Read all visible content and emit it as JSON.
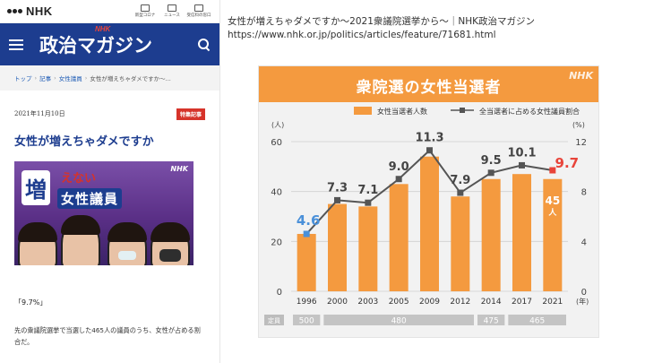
{
  "phone": {
    "logo": "NHK",
    "top_icons": [
      {
        "label": "新型コロナ",
        "icon": "virus-icon"
      },
      {
        "label": "ニュース",
        "icon": "news-icon"
      },
      {
        "label": "受信料の窓口",
        "icon": "receipt-icon"
      }
    ],
    "magazine_title": "政治マガジン",
    "magazine_brand": "NHK",
    "breadcrumb": {
      "home": "トップ",
      "articles": "記事",
      "category": "女性議員",
      "current": "女性が増えちゃダメですか〜..."
    },
    "date": "2021年11月10日",
    "tag": "特集記事",
    "headline": "女性が増えちゃダメですか",
    "hero": {
      "line1": "増",
      "line2": "えない",
      "line3": "女性議員",
      "brand": "NHK"
    },
    "subhead": "「9.7%」",
    "body": "先の衆議院選挙で当選した465人の議員のうち、女性が占める割合だ。"
  },
  "caption": {
    "title": "女性が増えちゃダメですか〜2021衆議院選挙から〜｜NHK政治マガジン",
    "url": "https://www.nhk.or.jp/politics/articles/feature/71681.html"
  },
  "chart_data": {
    "type": "bar",
    "title": "衆院選の女性当選者",
    "brand": "NHK",
    "legend": {
      "bars": "女性当選者人数",
      "line": "全当選者に占める女性議員割合"
    },
    "categories": [
      "1996",
      "2000",
      "2003",
      "2005",
      "2009",
      "2012",
      "2014",
      "2017",
      "2021"
    ],
    "series": [
      {
        "name": "女性当選者人数",
        "axis": "left",
        "values": [
          23,
          35,
          34,
          43,
          54,
          38,
          45,
          47,
          45
        ]
      },
      {
        "name": "全当選者に占める女性議員割合",
        "axis": "right",
        "values": [
          4.6,
          7.3,
          7.1,
          9.0,
          11.3,
          7.9,
          9.5,
          10.1,
          9.7
        ]
      }
    ],
    "pct_labels": [
      "4.6",
      "7.3",
      "7.1",
      "9.0",
      "11.3",
      "7.9",
      "9.5",
      "10.1",
      "9.7"
    ],
    "highlight_bar_label": "45",
    "highlight_bar_unit": "人",
    "ylim_left": [
      0,
      60
    ],
    "ylim_right": [
      0,
      12
    ],
    "left_ticks": [
      "0",
      "20",
      "40",
      "60"
    ],
    "right_ticks": [
      "0",
      "4",
      "8",
      "12"
    ],
    "left_unit": "(人)",
    "right_unit": "(%)",
    "x_unit": "(年)",
    "seats_label": "定員",
    "seats": [
      {
        "label": "500",
        "from": 0,
        "to": 0
      },
      {
        "label": "480",
        "from": 1,
        "to": 5
      },
      {
        "label": "475",
        "from": 6,
        "to": 6
      },
      {
        "label": "465",
        "from": 7,
        "to": 8
      }
    ],
    "colors": {
      "bar": "#f49a3f",
      "line": "#555555",
      "first_point": "#4a90d9",
      "last_point": "#e8443a"
    }
  }
}
